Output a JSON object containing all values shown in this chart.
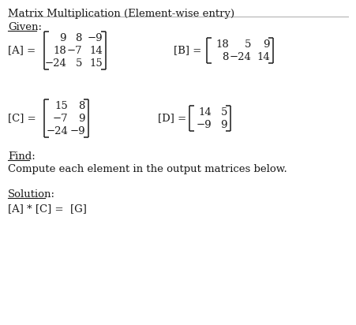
{
  "title": "Matrix Multiplication (Element-wise entry)",
  "bg_color": "#ffffff",
  "text_color": "#1a1a1a",
  "given_label": "Given:",
  "find_label": "Find:",
  "find_text": "Compute each element in the output matrices below.",
  "solution_label": "Solution:",
  "solution_text": "[A] * [C] =  [G]",
  "A_label": "[A] =",
  "A_rows": [
    [
      "9",
      "8",
      "−9"
    ],
    [
      "18",
      "−7",
      "14"
    ],
    [
      "−24",
      "5",
      "15"
    ]
  ],
  "B_label": "[B] =",
  "B_rows": [
    [
      "18",
      "5",
      "9"
    ],
    [
      "8",
      "−24",
      "14"
    ]
  ],
  "C_label": "[C] =",
  "C_rows": [
    [
      "15",
      "8"
    ],
    [
      "−7",
      "9"
    ],
    [
      "−24",
      "−9"
    ]
  ],
  "D_label": "[D] =",
  "D_rows": [
    [
      "14",
      "5"
    ],
    [
      "−9",
      "9"
    ]
  ],
  "font_size": 9.5,
  "title_font_size": 9.5,
  "line_color": "#555555"
}
